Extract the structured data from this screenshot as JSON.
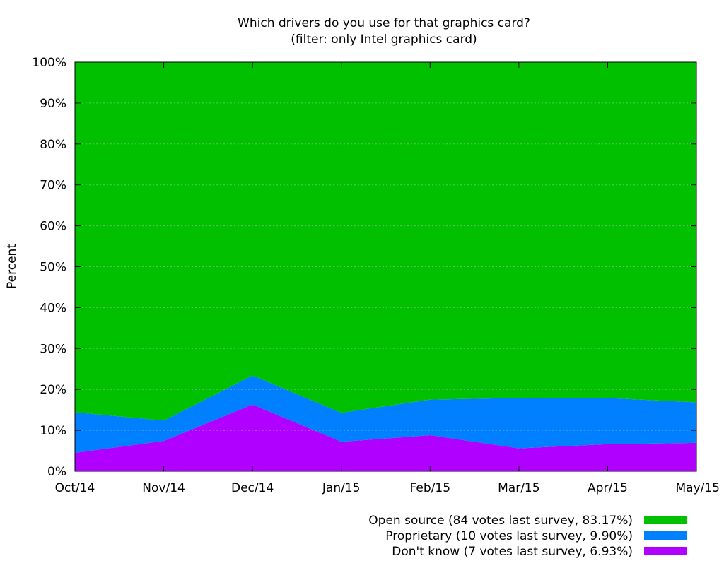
{
  "chart_data": {
    "type": "area",
    "stacked": true,
    "normalized_percent": true,
    "title": "Which drivers do you use for that graphics card?",
    "subtitle": "(filter: only Intel graphics card)",
    "xlabel": "",
    "ylabel": "Percent",
    "ylim": [
      0,
      100
    ],
    "y_ticks": [
      "0%",
      "10%",
      "20%",
      "30%",
      "40%",
      "50%",
      "60%",
      "70%",
      "80%",
      "90%",
      "100%"
    ],
    "grid": true,
    "legend_position": "bottom-right",
    "categories": [
      "Oct/14",
      "Nov/14",
      "Dec/14",
      "Jan/15",
      "Feb/15",
      "Mar/15",
      "Apr/15",
      "May/15"
    ],
    "series": [
      {
        "name": "Don't know (7 votes last survey, 6.93%)",
        "color": "#b000ff",
        "values": [
          4.5,
          7.4,
          16.3,
          7.2,
          8.8,
          5.6,
          6.6,
          6.93
        ]
      },
      {
        "name": "Proprietary (10 votes last survey, 9.90%)",
        "color": "#0080ff",
        "values": [
          9.9,
          5.0,
          7.1,
          7.1,
          8.7,
          12.3,
          11.3,
          9.9
        ]
      },
      {
        "name": "Open source (84 votes last survey, 83.17%)",
        "color": "#00c000",
        "values": [
          85.6,
          87.6,
          76.6,
          85.7,
          82.5,
          82.1,
          82.1,
          83.17
        ]
      }
    ],
    "legend_order": [
      "Open source (84 votes last survey, 83.17%)",
      "Proprietary (10 votes last survey, 9.90%)",
      "Don't know (7 votes last survey, 6.93%)"
    ]
  }
}
